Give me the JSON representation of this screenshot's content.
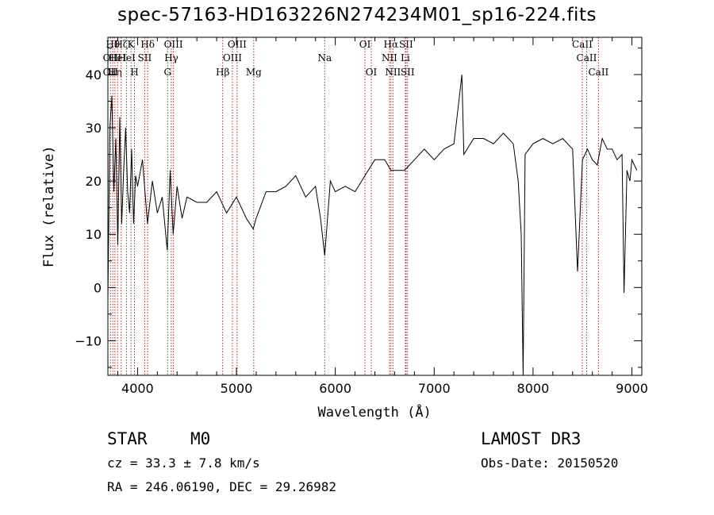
{
  "title": "spec-57163-HD163226N274234M01_sp16-224.fits",
  "footer": {
    "class_label": "STAR",
    "subclass": "M0",
    "survey": "LAMOST DR3",
    "cz": "cz = 33.3 ± 7.8 km/s",
    "obs_date": "Obs-Date: 20150520",
    "coords": "RA = 246.06190, DEC =  29.26982"
  },
  "chart_data": {
    "type": "line",
    "title": "spec-57163-HD163226N274234M01_sp16-224.fits",
    "xlabel": "Wavelength (Å)",
    "ylabel": "Flux (relative)",
    "xlim": [
      3700,
      9100
    ],
    "ylim": [
      -16.5,
      47
    ],
    "xticks": [
      4000,
      5000,
      6000,
      7000,
      8000,
      9000
    ],
    "yticks": [
      -10,
      0,
      10,
      20,
      30,
      40
    ],
    "grid": false,
    "line_color": "#000000",
    "marker_color": "#a52a2a",
    "series": [
      {
        "x": [
          3700,
          3720,
          3740,
          3760,
          3780,
          3800,
          3820,
          3840,
          3860,
          3880,
          3900,
          3920,
          3940,
          3960,
          3980,
          4000,
          4050,
          4100,
          4150,
          4200,
          4250,
          4300,
          4330,
          4360,
          4400,
          4450,
          4500,
          4600,
          4700,
          4800,
          4900,
          5000,
          5100,
          5170,
          5200,
          5300,
          5400,
          5500,
          5600,
          5700,
          5800,
          5850,
          5893,
          5950,
          6000,
          6100,
          6200,
          6300,
          6400,
          6500,
          6563,
          6600,
          6700,
          6800,
          6900,
          7000,
          7100,
          7200,
          7250,
          7280,
          7300,
          7400,
          7500,
          7600,
          7700,
          7800,
          7850,
          7880,
          7900,
          7920,
          8000,
          8100,
          8200,
          8300,
          8400,
          8450,
          8500,
          8550,
          8600,
          8650,
          8700,
          8750,
          8800,
          8850,
          8900,
          8920,
          8950,
          8980,
          9000,
          9050
        ],
        "y": [
          -2,
          30,
          36,
          18,
          28,
          8,
          32,
          12,
          22,
          30,
          18,
          14,
          26,
          12,
          21,
          19,
          24,
          12,
          20,
          14,
          17,
          7,
          22,
          10,
          19,
          13,
          17,
          16,
          16,
          18,
          14,
          17,
          13,
          11,
          13,
          18,
          18,
          19,
          21,
          17,
          19,
          13,
          6,
          20,
          18,
          19,
          18,
          21,
          24,
          24,
          22,
          22,
          22,
          24,
          26,
          24,
          26,
          27,
          35,
          40,
          25,
          28,
          28,
          27,
          29,
          27,
          20,
          10,
          -16.5,
          25,
          27,
          28,
          27,
          28,
          26,
          3,
          24,
          26,
          24,
          23,
          28,
          26,
          26,
          24,
          25,
          -1,
          22,
          20,
          24,
          22
        ]
      }
    ],
    "line_markers": [
      {
        "wave": 3726,
        "labels": [
          {
            "text": "OII",
            "row": 2
          },
          {
            "text": "OII",
            "row": 3
          }
        ]
      },
      {
        "wave": 3750,
        "labels": [
          {
            "text": "Hθ",
            "row": 1
          }
        ]
      },
      {
        "wave": 3771,
        "labels": [
          {
            "text": "Hη",
            "row": 3
          }
        ]
      },
      {
        "wave": 3798,
        "labels": [
          {
            "text": "HeI",
            "row": 2
          }
        ]
      },
      {
        "wave": 3835,
        "labels": [
          {
            "text": "Hζ",
            "row": 1
          }
        ]
      },
      {
        "wave": 3889,
        "labels": [
          {
            "text": "HeI",
            "row": 2
          }
        ]
      },
      {
        "wave": 3934,
        "labels": [
          {
            "text": "K",
            "row": 1
          }
        ]
      },
      {
        "wave": 3969,
        "labels": [
          {
            "text": "H",
            "row": 3
          }
        ]
      },
      {
        "wave": 4072,
        "labels": [
          {
            "text": "SII",
            "row": 2
          }
        ]
      },
      {
        "wave": 4102,
        "labels": [
          {
            "text": "Hδ",
            "row": 1
          }
        ]
      },
      {
        "wave": 4304,
        "labels": [
          {
            "text": "G",
            "row": 3
          }
        ]
      },
      {
        "wave": 4341,
        "labels": [
          {
            "text": "Hγ",
            "row": 2
          }
        ]
      },
      {
        "wave": 4363,
        "labels": [
          {
            "text": "OIII",
            "row": 1
          }
        ]
      },
      {
        "wave": 4861,
        "labels": [
          {
            "text": "Hβ",
            "row": 3
          }
        ]
      },
      {
        "wave": 4959,
        "labels": [
          {
            "text": "OIII",
            "row": 2
          }
        ]
      },
      {
        "wave": 5007,
        "labels": [
          {
            "text": "OIII",
            "row": 1
          }
        ]
      },
      {
        "wave": 5175,
        "labels": [
          {
            "text": "Mg",
            "row": 3
          }
        ]
      },
      {
        "wave": 5893,
        "labels": [
          {
            "text": "Na",
            "row": 2
          }
        ]
      },
      {
        "wave": 6300,
        "labels": [
          {
            "text": "OI",
            "row": 1
          }
        ]
      },
      {
        "wave": 6364,
        "labels": [
          {
            "text": "OI",
            "row": 3
          }
        ]
      },
      {
        "wave": 6548,
        "labels": [
          {
            "text": "NII",
            "row": 2
          }
        ]
      },
      {
        "wave": 6563,
        "labels": [
          {
            "text": "Hα",
            "row": 1
          }
        ]
      },
      {
        "wave": 6583,
        "labels": [
          {
            "text": "NII",
            "row": 3
          }
        ]
      },
      {
        "wave": 6708,
        "labels": [
          {
            "text": "Li",
            "row": 2
          }
        ]
      },
      {
        "wave": 6716,
        "labels": [
          {
            "text": "SII",
            "row": 1
          }
        ]
      },
      {
        "wave": 6731,
        "labels": [
          {
            "text": "SII",
            "row": 3
          }
        ]
      },
      {
        "wave": 8498,
        "labels": [
          {
            "text": "CaII",
            "row": 1
          }
        ]
      },
      {
        "wave": 8542,
        "labels": [
          {
            "text": "CaII",
            "row": 2
          }
        ]
      },
      {
        "wave": 8662,
        "labels": [
          {
            "text": "CaII",
            "row": 3
          }
        ]
      }
    ]
  }
}
